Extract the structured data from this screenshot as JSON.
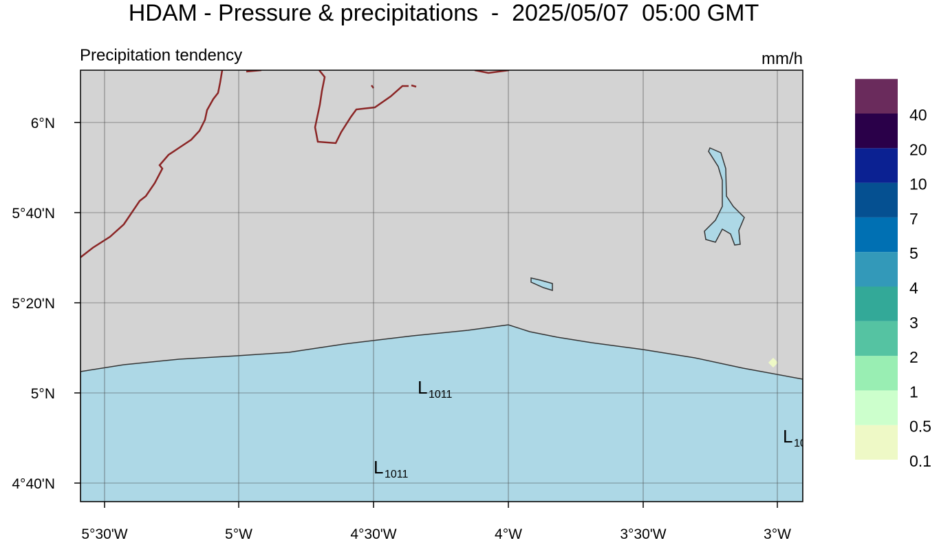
{
  "title": "HDAM - Pressure & precipitations  -  2025/05/07  05:00 GMT",
  "subtitle": "Precipitation tendency",
  "unit": "mm/h",
  "map": {
    "lat_labels": [
      "6°N",
      "5°40'N",
      "5°20'N",
      "5°N",
      "4°40'N"
    ],
    "lon_labels": [
      "5°30'W",
      "5°W",
      "4°30'W",
      "4°W",
      "3°30'W",
      "3°W"
    ],
    "pressure_lows": [
      {
        "letter": "L",
        "value": "1011"
      },
      {
        "letter": "L",
        "value": "1011"
      },
      {
        "letter": "L",
        "value": "10"
      }
    ]
  },
  "colorbar": {
    "levels": [
      0.1,
      0.5,
      1,
      2,
      3,
      4,
      5,
      7,
      10,
      20,
      40
    ],
    "colors": [
      "#eef9c6",
      "#ccffcc",
      "#99eeb3",
      "#55c3a2",
      "#33a998",
      "#3399b9",
      "#0070b3",
      "#055091",
      "#0b2192",
      "#2a0049",
      "#6a2b5c"
    ]
  }
}
